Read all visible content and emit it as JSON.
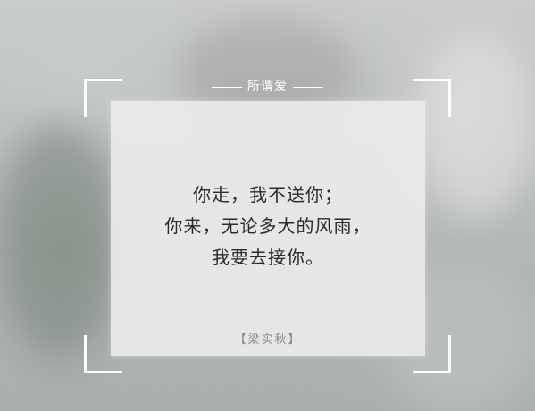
{
  "header": {
    "title": "所谓爱"
  },
  "poem": {
    "lines": [
      "你走，我不送你；",
      "你来，无论多大的风雨，",
      "我要去接你。"
    ]
  },
  "author": {
    "label": "【梁实秋】"
  },
  "colors": {
    "text": "#2b2b2b",
    "frame": "#ffffff",
    "card": "#ececea",
    "author": "#8a8a8a"
  }
}
